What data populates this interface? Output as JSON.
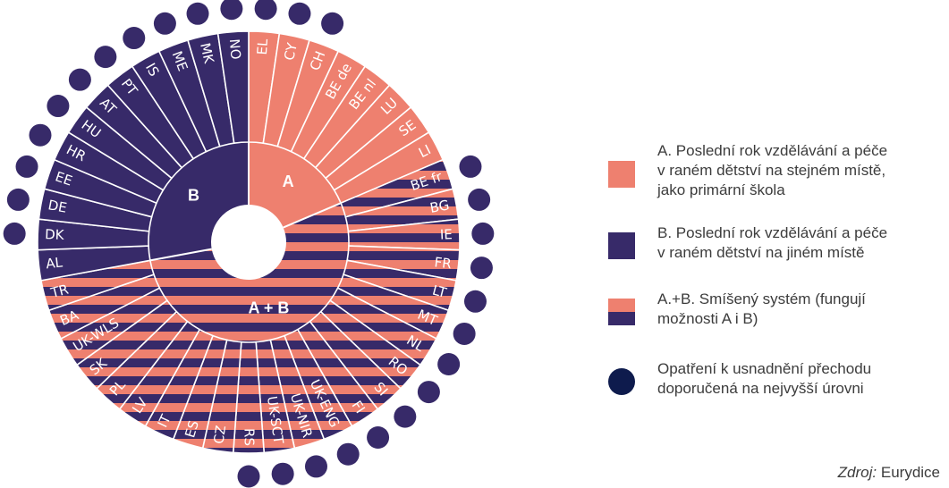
{
  "chart_data": {
    "type": "pie",
    "colors": {
      "A": "#EE806F",
      "B": "#372A69",
      "dot": "#372A69"
    },
    "group_labels": {
      "A": "A",
      "B": "B",
      "AB": "A + B"
    },
    "segments": [
      {
        "code": "EL",
        "category": "A",
        "dot": true
      },
      {
        "code": "CY",
        "category": "A",
        "dot": true
      },
      {
        "code": "CH",
        "category": "A",
        "dot": true
      },
      {
        "code": "BE de",
        "category": "A",
        "dot": false
      },
      {
        "code": "BE nl",
        "category": "A",
        "dot": false
      },
      {
        "code": "LU",
        "category": "A",
        "dot": false
      },
      {
        "code": "SE",
        "category": "A",
        "dot": false
      },
      {
        "code": "LI",
        "category": "A",
        "dot": false
      },
      {
        "code": "BE fr",
        "category": "A+B",
        "dot": true
      },
      {
        "code": "BG",
        "category": "A+B",
        "dot": true
      },
      {
        "code": "IE",
        "category": "A+B",
        "dot": true
      },
      {
        "code": "FR",
        "category": "A+B",
        "dot": true
      },
      {
        "code": "LT",
        "category": "A+B",
        "dot": true
      },
      {
        "code": "MT",
        "category": "A+B",
        "dot": true
      },
      {
        "code": "NL",
        "category": "A+B",
        "dot": true
      },
      {
        "code": "RO",
        "category": "A+B",
        "dot": true
      },
      {
        "code": "SI",
        "category": "A+B",
        "dot": true
      },
      {
        "code": "FI",
        "category": "A+B",
        "dot": true
      },
      {
        "code": "UK-ENG",
        "category": "A+B",
        "dot": true
      },
      {
        "code": "UK-NIR",
        "category": "A+B",
        "dot": true
      },
      {
        "code": "UK-SCT",
        "category": "A+B",
        "dot": true
      },
      {
        "code": "RS",
        "category": "A+B",
        "dot": true
      },
      {
        "code": "CZ",
        "category": "A+B",
        "dot": false
      },
      {
        "code": "ES",
        "category": "A+B",
        "dot": false
      },
      {
        "code": "IT",
        "category": "A+B",
        "dot": false
      },
      {
        "code": "LV",
        "category": "A+B",
        "dot": false
      },
      {
        "code": "PL",
        "category": "A+B",
        "dot": false
      },
      {
        "code": "SK",
        "category": "A+B",
        "dot": false
      },
      {
        "code": "UK-WLS",
        "category": "A+B",
        "dot": false
      },
      {
        "code": "BA",
        "category": "A+B",
        "dot": false
      },
      {
        "code": "TR",
        "category": "A+B",
        "dot": false
      },
      {
        "code": "AL",
        "category": "B",
        "dot": false
      },
      {
        "code": "DK",
        "category": "B",
        "dot": true
      },
      {
        "code": "DE",
        "category": "B",
        "dot": true
      },
      {
        "code": "EE",
        "category": "B",
        "dot": true
      },
      {
        "code": "HR",
        "category": "B",
        "dot": true
      },
      {
        "code": "HU",
        "category": "B",
        "dot": true
      },
      {
        "code": "AT",
        "category": "B",
        "dot": true
      },
      {
        "code": "PT",
        "category": "B",
        "dot": true
      },
      {
        "code": "IS",
        "category": "B",
        "dot": true
      },
      {
        "code": "ME",
        "category": "B",
        "dot": true
      },
      {
        "code": "MK",
        "category": "B",
        "dot": true
      },
      {
        "code": "NO",
        "category": "B",
        "dot": true
      }
    ]
  },
  "legend": {
    "a": "A. Poslední rok vzdělávání a péče\nv raném dětství na stejném místě,\njako primární škola",
    "b": "B. Poslední rok vzdělávání a péče\nv raném dětství na jiném místě",
    "ab": "A.+B. Smíšený systém (fungují\nmožnosti A i B)",
    "dot": "Opatření k usnadnění přechodu\ndoporučená na nejvyšší úrovni"
  },
  "source": {
    "label": "Zdroj:",
    "value": "Eurydice"
  }
}
